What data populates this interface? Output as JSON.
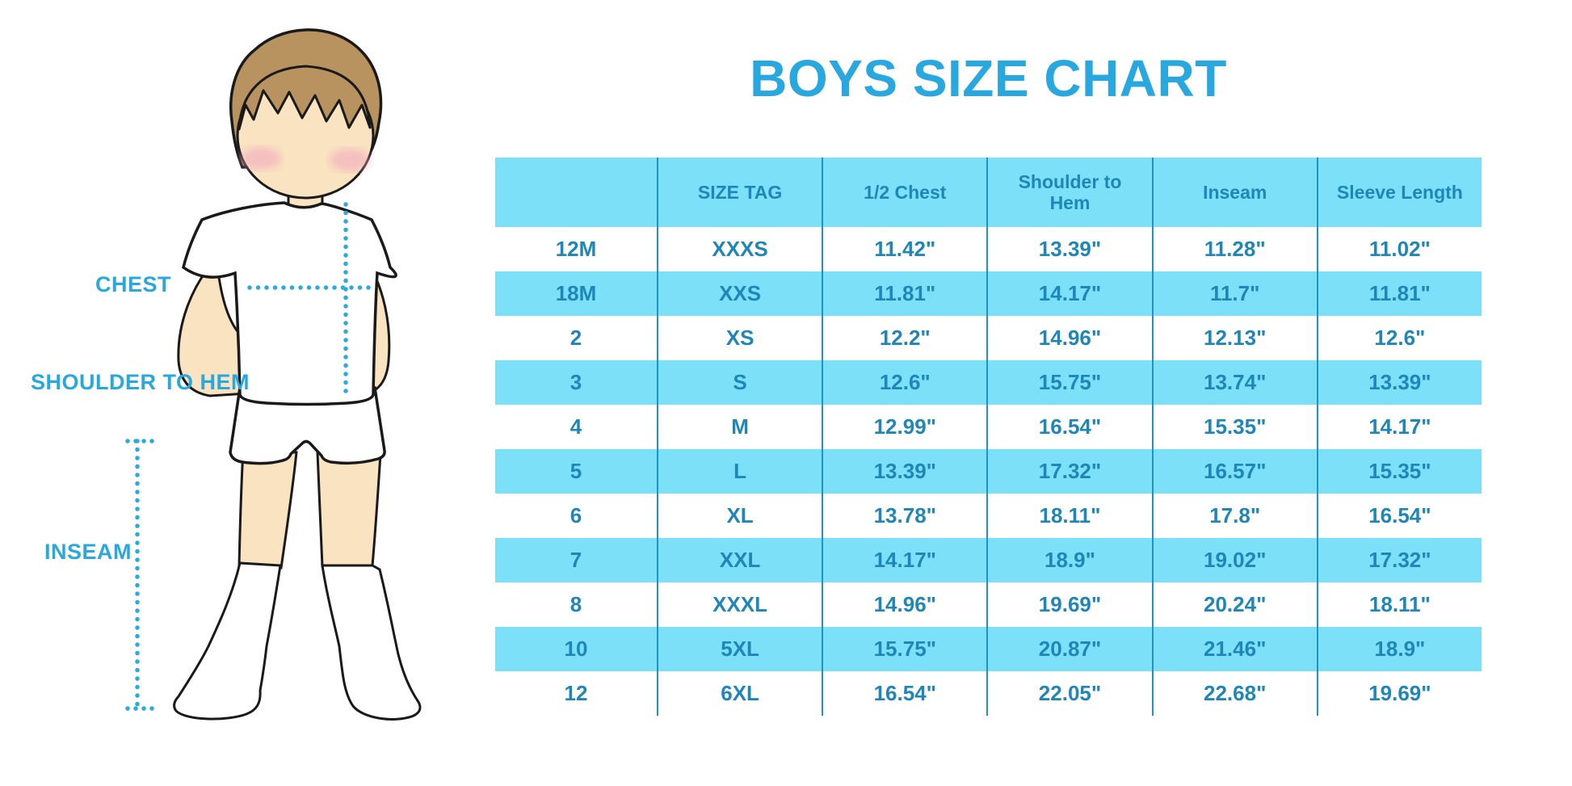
{
  "title": "BOYS SIZE CHART",
  "labels": {
    "chest": "CHEST",
    "shoulder_to_hem": "SHOULDER TO HEM",
    "inseam": "INSEAM"
  },
  "chart_data": {
    "type": "table",
    "title": "BOYS SIZE CHART",
    "units": "inches",
    "columns": [
      "",
      "SIZE TAG",
      "1/2 Chest",
      "Shoulder to Hem",
      "Inseam",
      "Sleeve Length"
    ],
    "rows": [
      [
        "12M",
        "XXXS",
        "11.42\"",
        "13.39\"",
        "11.28\"",
        "11.02\""
      ],
      [
        "18M",
        "XXS",
        "11.81\"",
        "14.17\"",
        "11.7\"",
        "11.81\""
      ],
      [
        "2",
        "XS",
        "12.2\"",
        "14.96\"",
        "12.13\"",
        "12.6\""
      ],
      [
        "3",
        "S",
        "12.6\"",
        "15.75\"",
        "13.74\"",
        "13.39\""
      ],
      [
        "4",
        "M",
        "12.99\"",
        "16.54\"",
        "15.35\"",
        "14.17\""
      ],
      [
        "5",
        "L",
        "13.39\"",
        "17.32\"",
        "16.57\"",
        "15.35\""
      ],
      [
        "6",
        "XL",
        "13.78\"",
        "18.11\"",
        "17.8\"",
        "16.54\""
      ],
      [
        "7",
        "XXL",
        "14.17\"",
        "18.9\"",
        "19.02\"",
        "17.32\""
      ],
      [
        "8",
        "XXXL",
        "14.96\"",
        "19.69\"",
        "20.24\"",
        "18.11\""
      ],
      [
        "10",
        "5XL",
        "15.75\"",
        "20.87\"",
        "21.46\"",
        "18.9\""
      ],
      [
        "12",
        "6XL",
        "16.54\"",
        "22.05\"",
        "22.68\"",
        "19.69\""
      ]
    ],
    "layout": {
      "zebra_striping": true,
      "striped_rows": [
        "header",
        "18M",
        "3",
        "5",
        "7",
        "10"
      ]
    },
    "colors": {
      "accent_blue": "#29A8DF",
      "stripe_blue": "#7BE0F8",
      "table_text_blue": "#1F86B8",
      "divider_blue": "#2191C9",
      "skin": "#F9E3C0",
      "hair_brown": "#B8935F",
      "blush_pink": "#F3A7BF",
      "outline": "#1A1A1A"
    }
  }
}
